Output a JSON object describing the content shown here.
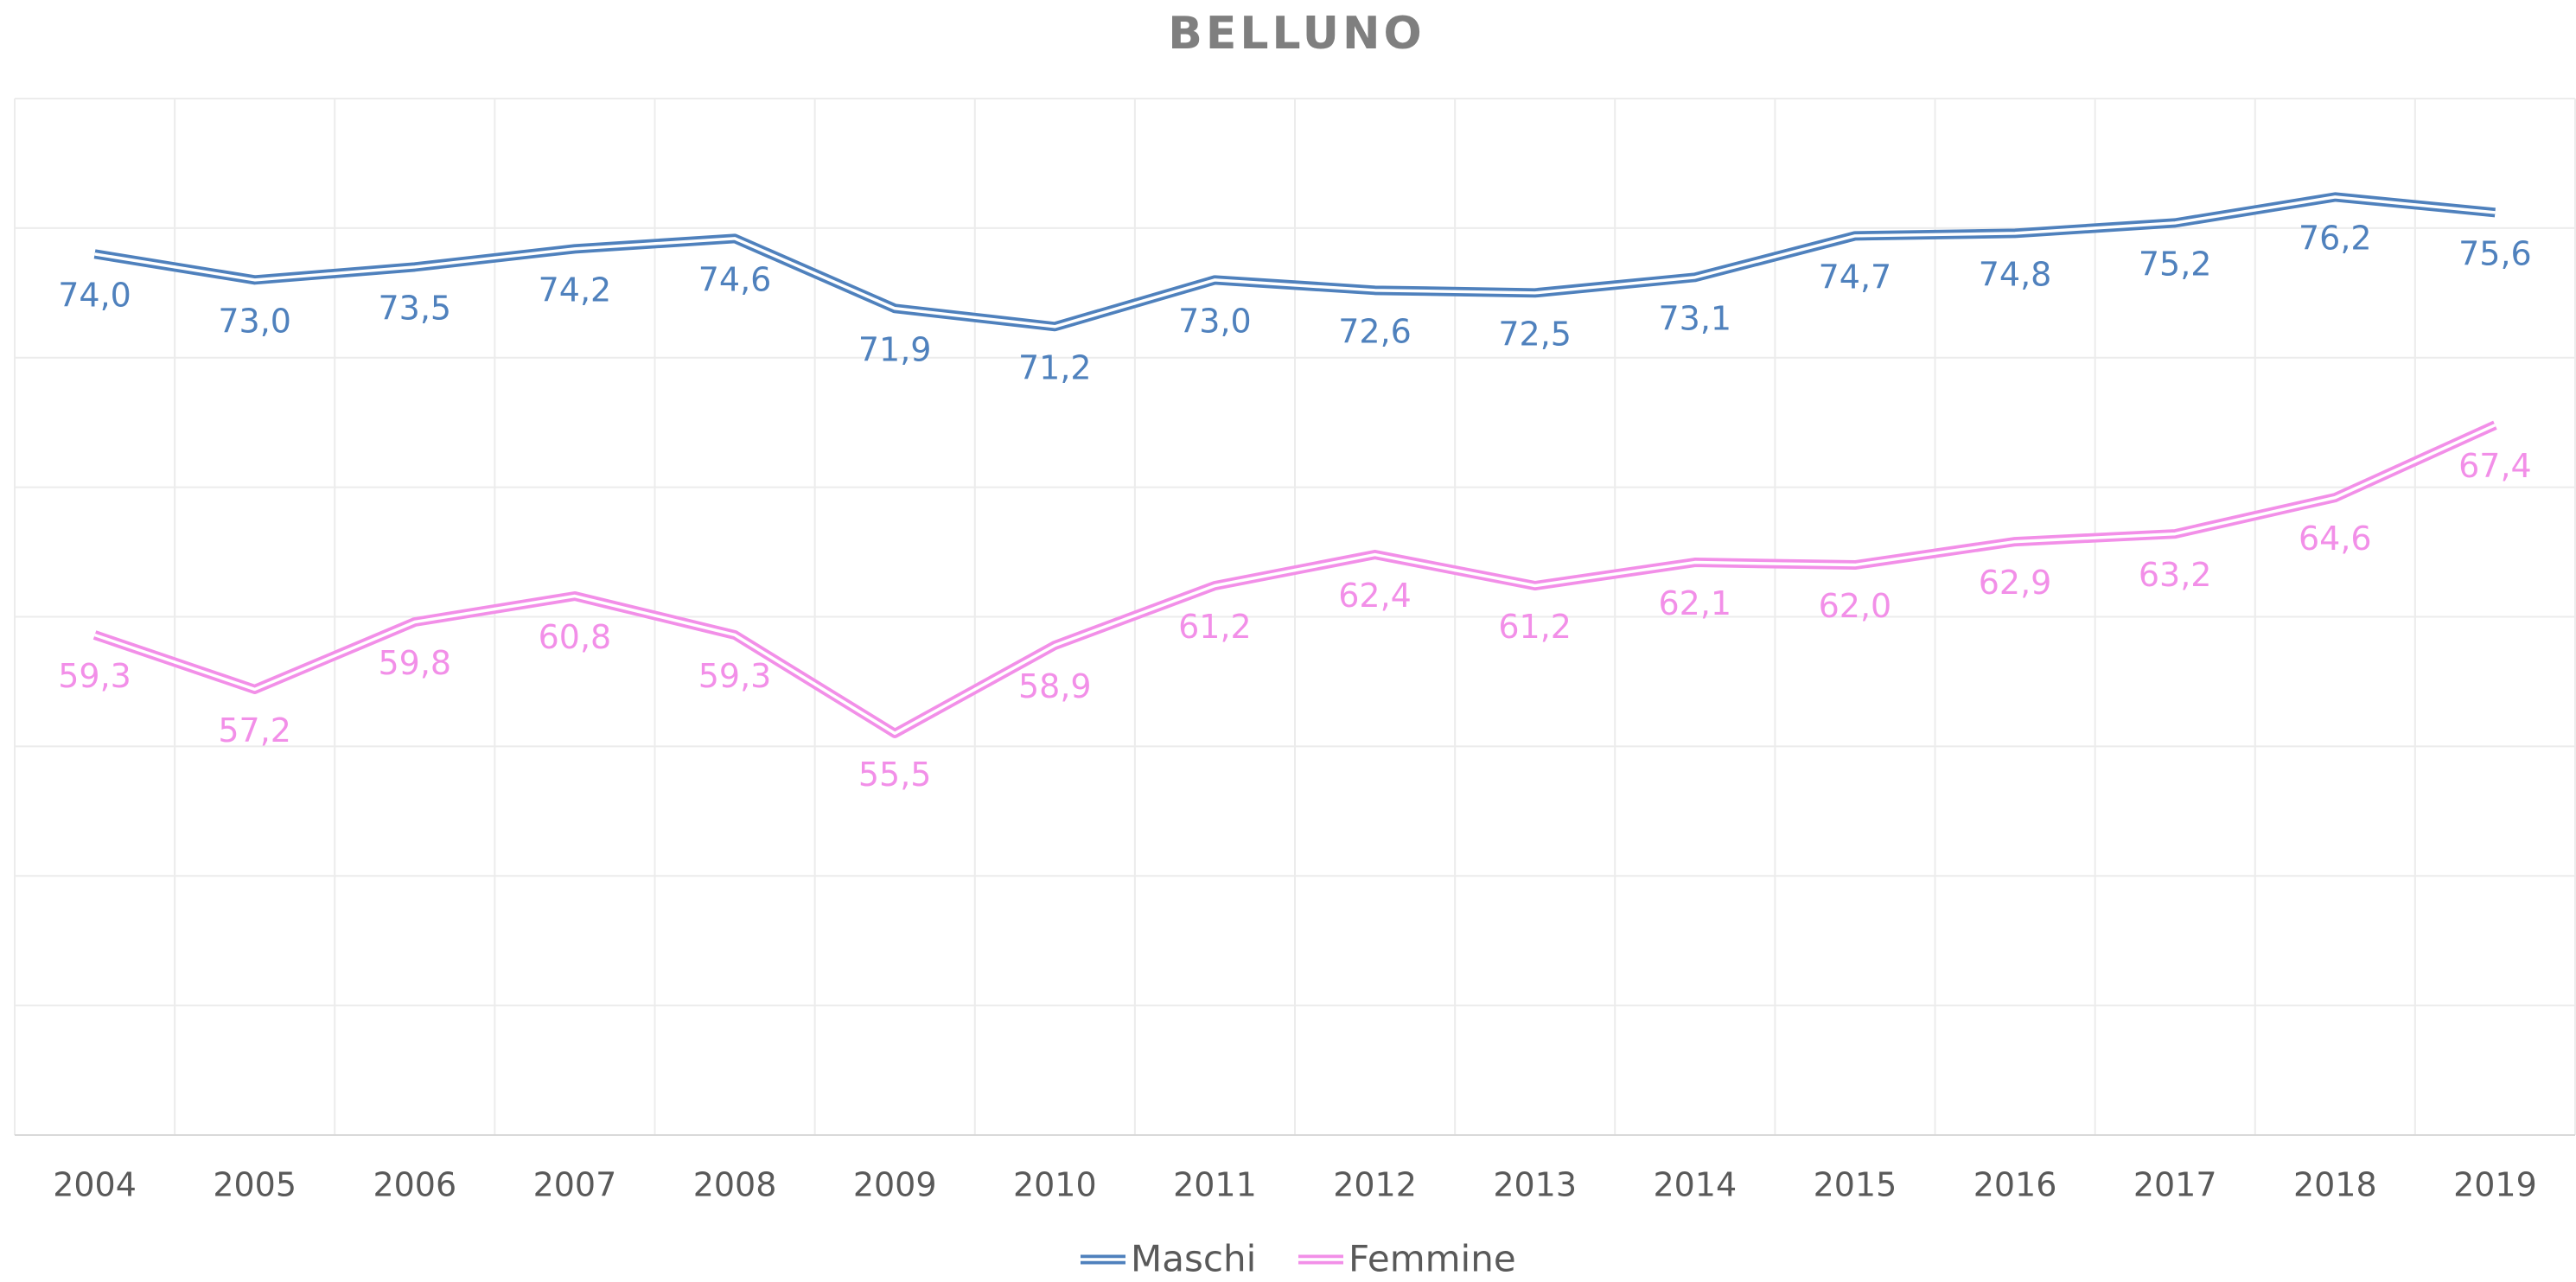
{
  "chart_data": {
    "type": "line",
    "title": "BELLUNO",
    "categories": [
      "2004",
      "2005",
      "2006",
      "2007",
      "2008",
      "2009",
      "2010",
      "2011",
      "2012",
      "2013",
      "2014",
      "2015",
      "2016",
      "2017",
      "2018",
      "2019"
    ],
    "series": [
      {
        "name": "Maschi",
        "color": "#4f81bd",
        "values": [
          74.0,
          73.0,
          73.5,
          74.2,
          74.6,
          71.9,
          71.2,
          73.0,
          72.6,
          72.5,
          73.1,
          74.7,
          74.8,
          75.2,
          76.2,
          75.6
        ],
        "value_labels": [
          "74,0",
          "73,0",
          "73,5",
          "74,2",
          "74,6",
          "71,9",
          "71,2",
          "73,0",
          "72,6",
          "72,5",
          "73,1",
          "74,7",
          "74,8",
          "75,2",
          "76,2",
          "75,6"
        ]
      },
      {
        "name": "Femmine",
        "color": "#f28fe8",
        "values": [
          59.3,
          57.2,
          59.8,
          60.8,
          59.3,
          55.5,
          58.9,
          61.2,
          62.4,
          61.2,
          62.1,
          62.0,
          62.9,
          63.2,
          64.6,
          67.4
        ],
        "value_labels": [
          "59,3",
          "57,2",
          "59,8",
          "60,8",
          "59,3",
          "55,5",
          "58,9",
          "61,2",
          "62,4",
          "61,2",
          "62,1",
          "62,0",
          "62,9",
          "63,2",
          "64,6",
          "67,4"
        ]
      }
    ],
    "ylim": [
      40,
      80
    ],
    "yticks": [
      40,
      45,
      50,
      55,
      60,
      65,
      70,
      75,
      80
    ],
    "grid": true,
    "legend": "bottom"
  }
}
